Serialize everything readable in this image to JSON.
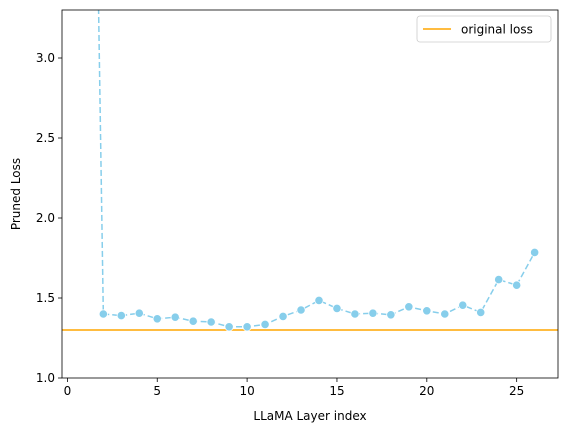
{
  "chart_data": {
    "type": "line",
    "title": "",
    "xlabel": "LLaMA Layer index",
    "ylabel": "Pruned Loss",
    "xlim": [
      -0.3,
      27.3
    ],
    "ylim": [
      1.0,
      3.3
    ],
    "xticks": [
      0,
      5,
      10,
      15,
      20,
      25
    ],
    "xtick_labels": [
      "0",
      "5",
      "10",
      "15",
      "20",
      "25"
    ],
    "yticks": [
      1.0,
      1.5,
      2.0,
      2.5,
      3.0
    ],
    "ytick_labels": [
      "1.0",
      "1.5",
      "2.0",
      "2.5",
      "3.0"
    ],
    "grid": false,
    "legend_position": "top-right",
    "series": [
      {
        "name": "pruned loss",
        "color": "#87CEEB",
        "style": "dashed-with-markers",
        "x": [
          2,
          3,
          4,
          5,
          6,
          7,
          8,
          9,
          10,
          11,
          12,
          13,
          14,
          15,
          16,
          17,
          18,
          19,
          20,
          21,
          22,
          23,
          24,
          25,
          26
        ],
        "values": [
          1.4,
          1.39,
          1.405,
          1.37,
          1.38,
          1.355,
          1.35,
          1.32,
          1.32,
          1.335,
          1.385,
          1.425,
          1.485,
          1.435,
          1.4,
          1.405,
          1.395,
          1.445,
          1.42,
          1.4,
          1.455,
          1.41,
          1.615,
          1.58,
          1.785
        ],
        "off_chart_start": {
          "x": 1.5,
          "y": 5.0
        }
      }
    ],
    "reference_lines": [
      {
        "name": "original loss",
        "y": 1.3,
        "color": "#FFA500"
      }
    ]
  }
}
